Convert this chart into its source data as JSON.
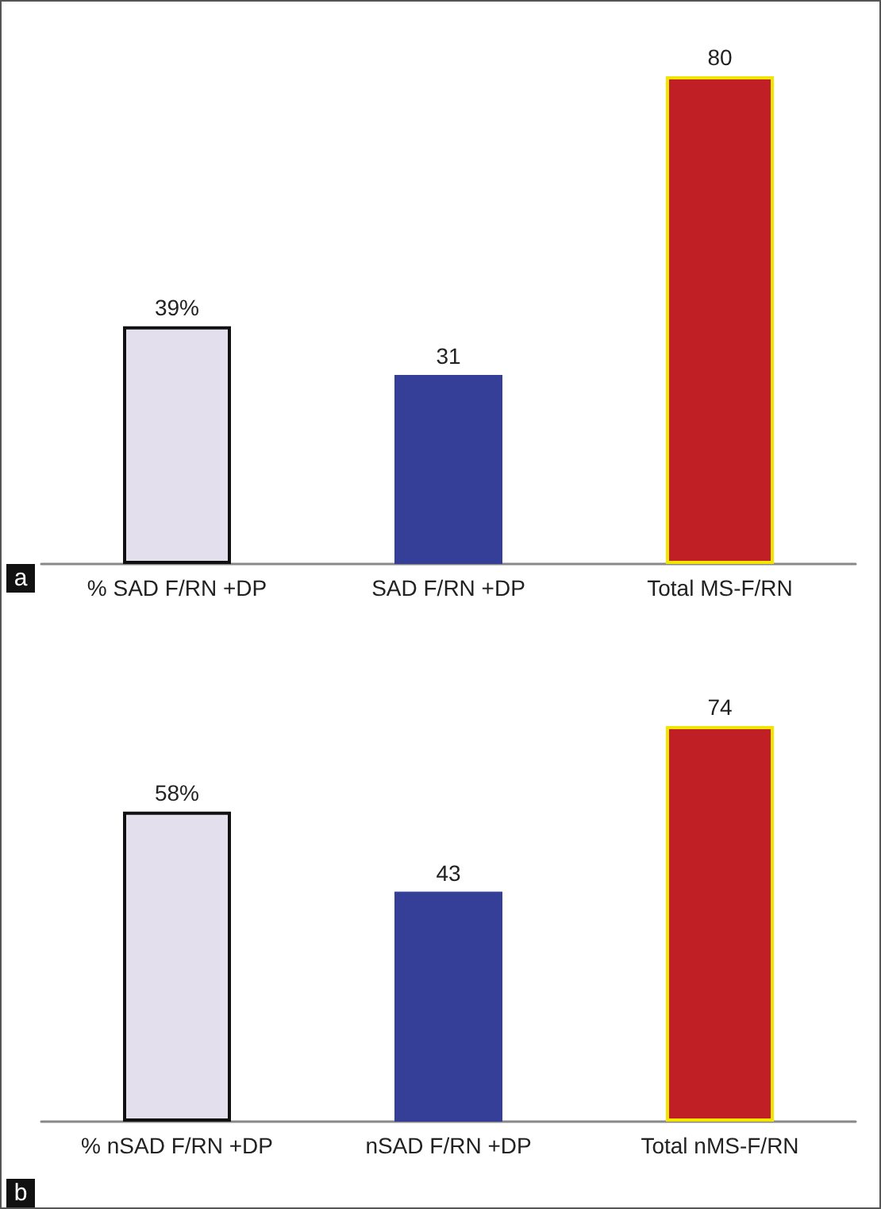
{
  "chart_data": [
    {
      "type": "bar",
      "categories": [
        "% SAD F/RN +DP",
        "SAD F/RN +DP",
        "Total MS-F/RN"
      ],
      "values": [
        39,
        31,
        80
      ],
      "colors": [
        "#e4dfec",
        "#353f98",
        "#c01f26"
      ],
      "value_labels": [
        "39%",
        "31",
        "80"
      ],
      "annotations": [
        "a"
      ]
    },
    {
      "type": "bar",
      "categories": [
        "% nSAD F/RN +DP",
        "nSAD F/RN +DP",
        "Total nMS-F/RN"
      ],
      "values": [
        58,
        43,
        74
      ],
      "colors": [
        "#e4dfec",
        "#353f98",
        "#c01f26"
      ],
      "value_labels": [
        "58%",
        "43",
        "74"
      ],
      "annotations": [
        "b"
      ]
    }
  ]
}
